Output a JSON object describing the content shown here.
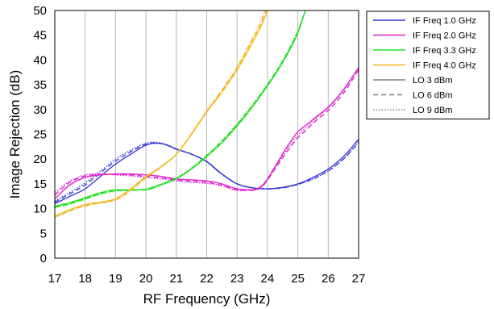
{
  "chart_data": {
    "type": "line",
    "xlabel": "RF Frequency (GHz)",
    "ylabel": "Image Rejection (dB)",
    "xlim": [
      17,
      27
    ],
    "ylim": [
      0,
      50
    ],
    "x_ticks": [
      17,
      18,
      19,
      20,
      21,
      22,
      23,
      24,
      25,
      26,
      27
    ],
    "y_ticks": [
      0,
      5,
      10,
      15,
      20,
      25,
      30,
      35,
      40,
      45,
      50
    ],
    "grid": "vertical",
    "legend_position": "right",
    "colors": {
      "if_1_0": "#3b3bd8",
      "if_2_0": "#e020d0",
      "if_3_3": "#22e022",
      "if_4_0": "#f0b820",
      "lo_key": "#808080"
    },
    "legend": [
      {
        "label": "IF Freq 1.0 GHz",
        "color": "#3b3bd8",
        "dash": "solid"
      },
      {
        "label": "IF Freq 2.0 GHz",
        "color": "#e020d0",
        "dash": "solid"
      },
      {
        "label": "IF Freq 3.3 GHz",
        "color": "#22e022",
        "dash": "solid"
      },
      {
        "label": "IF Freq 4.0 GHz",
        "color": "#f0b820",
        "dash": "solid"
      },
      {
        "label": "LO 3 dBm",
        "color": "#808080",
        "dash": "solid"
      },
      {
        "label": "LO 6 dBm",
        "color": "#808080",
        "dash": "dashed"
      },
      {
        "label": "LO 9 dBm",
        "color": "#808080",
        "dash": "dotted"
      }
    ],
    "series": [
      {
        "if": "IF Freq 1.0 GHz",
        "lo": "LO 3 dBm",
        "color": "#3b3bd8",
        "dash": "solid",
        "x": [
          17,
          17.5,
          18,
          18.5,
          19,
          19.5,
          20,
          20.3,
          20.6,
          21,
          21.5,
          22,
          22.5,
          23,
          23.5,
          24,
          24.5,
          25,
          25.5,
          26,
          26.5,
          27
        ],
        "y": [
          11.0,
          12.5,
          14.0,
          16.5,
          19.0,
          21.0,
          22.8,
          23.2,
          23.0,
          22.0,
          21.0,
          19.5,
          17.0,
          15.0,
          14.2,
          14.0,
          14.3,
          15.0,
          16.3,
          18.0,
          20.5,
          24.0
        ]
      },
      {
        "if": "IF Freq 1.0 GHz",
        "lo": "LO 6 dBm",
        "color": "#3b3bd8",
        "dash": "dashed",
        "x": [
          17,
          17.5,
          18,
          18.5,
          19,
          19.5,
          20,
          20.3,
          20.6,
          21,
          21.5,
          22,
          22.5,
          23,
          23.5,
          24,
          24.5,
          25,
          25.5,
          26,
          26.5,
          27
        ],
        "y": [
          11.3,
          13.0,
          14.8,
          17.2,
          19.6,
          21.5,
          23.0,
          23.3,
          23.0,
          22.0,
          21.0,
          19.5,
          17.0,
          15.0,
          14.2,
          14.0,
          14.2,
          14.9,
          16.0,
          17.6,
          20.0,
          23.3
        ]
      },
      {
        "if": "IF Freq 1.0 GHz",
        "lo": "LO 9 dBm",
        "color": "#3b3bd8",
        "dash": "dotted",
        "x": [
          17,
          17.5,
          18,
          18.5,
          19,
          19.5,
          20,
          20.3,
          20.6,
          21,
          21.5,
          22,
          22.5,
          23,
          23.5,
          24,
          24.5,
          25,
          25.5,
          26,
          26.5,
          27
        ],
        "y": [
          11.5,
          13.3,
          15.2,
          17.6,
          20.0,
          21.8,
          23.2,
          23.4,
          23.1,
          22.1,
          21.0,
          19.4,
          16.9,
          15.0,
          14.2,
          14.0,
          14.2,
          14.9,
          16.0,
          17.6,
          20.0,
          23.5
        ]
      },
      {
        "if": "IF Freq 2.0 GHz",
        "lo": "LO 3 dBm",
        "color": "#e020d0",
        "dash": "solid",
        "x": [
          17,
          17.5,
          18,
          18.5,
          19,
          19.5,
          20,
          20.5,
          21,
          21.5,
          22,
          22.5,
          23,
          23.5,
          23.8,
          24,
          24.3,
          24.7,
          25,
          25.3,
          25.6,
          26,
          26.5,
          27
        ],
        "y": [
          12.0,
          14.8,
          16.3,
          16.8,
          17.0,
          17.0,
          16.8,
          16.5,
          16.0,
          15.8,
          15.6,
          15.0,
          14.0,
          13.8,
          14.5,
          16.0,
          19.0,
          23.0,
          25.5,
          27.0,
          28.5,
          30.5,
          34.0,
          38.5
        ]
      },
      {
        "if": "IF Freq 2.0 GHz",
        "lo": "LO 6 dBm",
        "color": "#e020d0",
        "dash": "dashed",
        "x": [
          17,
          17.5,
          18,
          18.5,
          19,
          19.5,
          20,
          20.5,
          21,
          21.5,
          22,
          22.5,
          23,
          23.5,
          23.8,
          24,
          24.3,
          24.7,
          25,
          25.3,
          25.6,
          26,
          26.5,
          27
        ],
        "y": [
          12.8,
          15.3,
          16.6,
          16.9,
          16.9,
          16.8,
          16.5,
          16.2,
          15.8,
          15.5,
          15.3,
          14.7,
          13.8,
          13.7,
          14.3,
          15.8,
          18.5,
          22.0,
          24.3,
          26.0,
          27.8,
          29.8,
          33.3,
          38.0
        ]
      },
      {
        "if": "IF Freq 2.0 GHz",
        "lo": "LO 9 dBm",
        "color": "#e020d0",
        "dash": "dotted",
        "x": [
          17,
          17.5,
          18,
          18.5,
          19,
          19.5,
          20,
          20.5,
          21,
          21.5,
          22,
          22.5,
          23,
          23.5,
          23.8,
          24,
          24.3,
          24.7,
          25,
          25.3,
          25.6,
          26,
          26.5,
          27
        ],
        "y": [
          13.3,
          15.6,
          16.8,
          17.0,
          16.8,
          16.6,
          16.3,
          16.0,
          15.6,
          15.3,
          15.1,
          14.6,
          13.7,
          13.7,
          14.3,
          15.8,
          18.7,
          22.5,
          24.8,
          26.5,
          28.3,
          30.3,
          33.8,
          38.5
        ]
      },
      {
        "if": "IF Freq 3.3 GHz",
        "lo": "LO 3 dBm",
        "color": "#22e022",
        "dash": "solid",
        "x": [
          17,
          17.5,
          18,
          18.5,
          19,
          19.5,
          20,
          20.5,
          21,
          21.5,
          22,
          22.5,
          23,
          23.5,
          24,
          24.5,
          25,
          25.25
        ],
        "y": [
          10.5,
          11.2,
          12.2,
          13.2,
          13.8,
          13.8,
          13.8,
          14.8,
          16.0,
          18.0,
          20.5,
          23.3,
          26.7,
          30.5,
          34.8,
          39.5,
          45.5,
          50.0
        ]
      },
      {
        "if": "IF Freq 3.3 GHz",
        "lo": "LO 6 dBm",
        "color": "#22e022",
        "dash": "dashed",
        "x": [
          17,
          17.5,
          18,
          18.5,
          19,
          19.5,
          20,
          20.5,
          21,
          21.5,
          22,
          22.5,
          23,
          23.5,
          24,
          24.5,
          25,
          25.25
        ],
        "y": [
          10.3,
          11.0,
          12.0,
          13.0,
          13.6,
          13.7,
          13.9,
          14.9,
          16.1,
          18.1,
          20.7,
          23.6,
          27.0,
          30.8,
          35.0,
          39.8,
          45.8,
          50.0
        ]
      },
      {
        "if": "IF Freq 3.3 GHz",
        "lo": "LO 9 dBm",
        "color": "#22e022",
        "dash": "dotted",
        "x": [
          17,
          17.5,
          18,
          18.5,
          19,
          19.5,
          20,
          20.5,
          21,
          21.5,
          22,
          22.5,
          23,
          23.5,
          24,
          24.5,
          25,
          25.25
        ],
        "y": [
          10.2,
          10.9,
          11.9,
          12.9,
          13.5,
          13.7,
          14.0,
          15.0,
          16.2,
          18.2,
          20.8,
          23.7,
          27.1,
          30.9,
          35.1,
          39.9,
          45.9,
          50.0
        ]
      },
      {
        "if": "IF Freq 4.0 GHz",
        "lo": "LO 3 dBm",
        "color": "#f0b820",
        "dash": "solid",
        "x": [
          17,
          17.5,
          18,
          18.5,
          19,
          19.5,
          20,
          20.5,
          21,
          21.5,
          22,
          22.5,
          23,
          23.5,
          23.8,
          24.0
        ],
        "y": [
          8.5,
          9.8,
          10.8,
          11.3,
          12.0,
          14.0,
          16.5,
          18.5,
          21.0,
          25.0,
          29.5,
          33.5,
          38.0,
          43.5,
          47.0,
          50.0
        ]
      },
      {
        "if": "IF Freq 4.0 GHz",
        "lo": "LO 6 dBm",
        "color": "#f0b820",
        "dash": "dashed",
        "x": [
          17,
          17.5,
          18,
          18.5,
          19,
          19.5,
          20,
          20.5,
          21,
          21.5,
          22,
          22.5,
          23,
          23.5,
          23.8,
          23.95
        ],
        "y": [
          8.3,
          9.6,
          10.6,
          11.2,
          11.8,
          13.7,
          16.3,
          18.4,
          21.0,
          25.1,
          29.6,
          33.8,
          38.4,
          44.0,
          47.6,
          50.0
        ]
      },
      {
        "if": "IF Freq 4.0 GHz",
        "lo": "LO 9 dBm",
        "color": "#f0b820",
        "dash": "dotted",
        "x": [
          17,
          17.5,
          18,
          18.5,
          19,
          19.5,
          20,
          20.5,
          21,
          21.5,
          22,
          22.5,
          23,
          23.5,
          23.8,
          23.9
        ],
        "y": [
          8.2,
          9.5,
          10.5,
          11.1,
          11.7,
          13.6,
          16.2,
          18.3,
          21.0,
          25.2,
          29.8,
          34.0,
          38.7,
          44.4,
          48.2,
          50.0
        ]
      }
    ]
  }
}
